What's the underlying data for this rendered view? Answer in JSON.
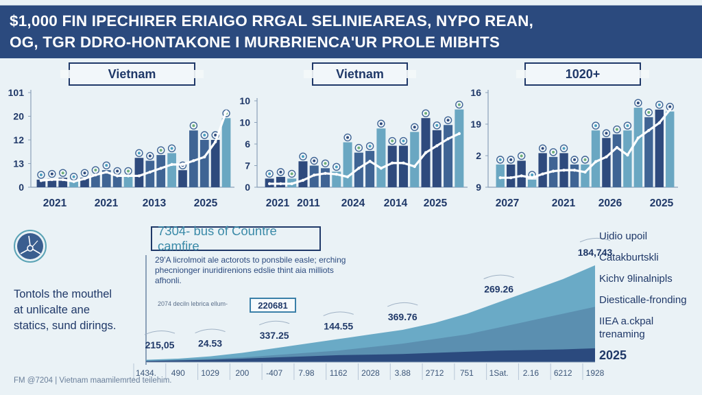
{
  "header": {
    "title_line1": "$1,000 FIN IPECHIRER ERIAIGO RRGAL SELINIEAREAS, NYPO REAN,",
    "title_line2": "OG, TGR DDRO-HONTAKONE I MURBRIENCA'UR PROLE MIBHTS"
  },
  "colors": {
    "header_bg": "#2b4a7e",
    "navy": "#1f3868",
    "bar_dark": "#2e4a7d",
    "bar_mid": "#3f6494",
    "bar_light": "#6aa7c2",
    "line": "#ffffff",
    "area_light": "#6aaac6",
    "area_mid": "#5b8fb0",
    "area_dark": "#2b4a7e",
    "background": "#eaf2f6"
  },
  "chart_data": [
    {
      "type": "bar",
      "title": "Vietnam",
      "yticks": [
        "101",
        "20",
        "12",
        "13",
        "0"
      ],
      "xticks": [
        "2021",
        "2021",
        "2013",
        "2025"
      ],
      "ylim": [
        0,
        100
      ],
      "grid": false,
      "series": [
        {
          "name": "bars",
          "values": [
            8,
            9,
            10,
            6,
            10,
            13,
            18,
            12,
            12,
            31,
            28,
            34,
            36,
            18,
            60,
            50,
            50,
            73
          ]
        },
        {
          "name": "trend-line",
          "type": "line",
          "values": [
            7,
            8,
            8,
            6,
            9,
            13,
            16,
            12,
            12,
            12,
            16,
            20,
            24,
            24,
            28,
            32,
            48,
            80
          ]
        }
      ],
      "bar_shades": [
        "dark",
        "dark",
        "dark",
        "light",
        "dark",
        "mid",
        "mid",
        "mid",
        "light",
        "dark",
        "mid",
        "mid",
        "light",
        "dark",
        "mid",
        "mid",
        "dark",
        "light"
      ]
    },
    {
      "type": "bar",
      "title": "Vietnam",
      "yticks": [
        "10",
        "10",
        "6",
        "7",
        "0"
      ],
      "xticks": [
        "2021",
        "2011",
        "2024",
        "2014",
        "2025"
      ],
      "ylim": [
        0,
        100
      ],
      "grid": false,
      "series": [
        {
          "name": "bars",
          "values": [
            10,
            12,
            10,
            30,
            25,
            22,
            18,
            52,
            40,
            42,
            68,
            48,
            48,
            64,
            80,
            66,
            72,
            90
          ]
        },
        {
          "name": "trend-line",
          "type": "line",
          "values": [
            4,
            4,
            4,
            8,
            14,
            16,
            15,
            12,
            22,
            30,
            22,
            28,
            28,
            24,
            40,
            48,
            56,
            62
          ]
        }
      ],
      "bar_shades": [
        "dark",
        "dark",
        "light",
        "dark",
        "mid",
        "mid",
        "light",
        "light",
        "mid",
        "mid",
        "light",
        "dark",
        "dark",
        "light",
        "dark",
        "dark",
        "mid",
        "light"
      ]
    },
    {
      "type": "bar",
      "title": "1020+",
      "yticks": [
        "16",
        "19",
        "2",
        "9"
      ],
      "xticks": [
        "2027",
        "2021",
        "2026",
        "2025"
      ],
      "ylim": [
        0,
        100
      ],
      "grid": false,
      "series": [
        {
          "name": "bars",
          "values": [
            24,
            24,
            28,
            8,
            36,
            32,
            36,
            24,
            24,
            60,
            52,
            56,
            60,
            84,
            74,
            82,
            80
          ]
        },
        {
          "name": "trend-line",
          "type": "line",
          "values": [
            10,
            10,
            12,
            10,
            14,
            17,
            18,
            18,
            16,
            27,
            32,
            42,
            34,
            52,
            60,
            68,
            82
          ]
        }
      ],
      "bar_shades": [
        "light",
        "dark",
        "dark",
        "light",
        "dark",
        "mid",
        "dark",
        "mid",
        "light",
        "light",
        "dark",
        "mid",
        "light",
        "light",
        "mid",
        "dark",
        "light"
      ]
    },
    {
      "type": "area",
      "title": "7304- bus of Countre camfire",
      "xticks": [
        "1434.",
        "490",
        "1029",
        "200",
        "-407",
        "7.98",
        "1162",
        "2028",
        "3.88",
        "2712",
        "751",
        "1Sat.",
        "2.16",
        "6212",
        "1928"
      ],
      "ylim": [
        0,
        100
      ],
      "series": [
        {
          "name": "Uidio upoil",
          "values": [
            2,
            3,
            5,
            8,
            12,
            16,
            20,
            24,
            28,
            34,
            42,
            52,
            62,
            72,
            84
          ]
        },
        {
          "name": "Diesticalle-fronding",
          "values": [
            1,
            2,
            3,
            4,
            6,
            8,
            10,
            13,
            16,
            20,
            24,
            30,
            36,
            42,
            48
          ]
        },
        {
          "name": "2025",
          "values": [
            1,
            1.5,
            2,
            3,
            4,
            5,
            6,
            6.5,
            7,
            8,
            9,
            10,
            10.5,
            11,
            12
          ]
        }
      ],
      "annotations": [
        {
          "label": "215,05",
          "x_index": 0
        },
        {
          "label": "24.53",
          "x_index": 2
        },
        {
          "label": "337.25",
          "x_index": 4
        },
        {
          "label": "144.55",
          "x_index": 6
        },
        {
          "label": "369.76",
          "x_index": 8
        },
        {
          "label": "269.26",
          "x_index": 11
        },
        {
          "label": "184,743",
          "x_index": 14
        }
      ]
    }
  ],
  "bottom": {
    "side_text_lines": [
      "Tontols the mouthel",
      "at unlicalte ane",
      "statics, sund dirings."
    ],
    "subtitle": "7304- bus of Countre camfire",
    "paragraph": "29'A licrolmoit ale actorots to ponsbile easle; erching phecnionger inuridirenions edslie thint aia milliots afhonli.",
    "note": "2074 deciln lebrica ellum-",
    "callout": "220681",
    "legend": [
      "Uidio upoil",
      "Catakburtskli",
      "Kichv 9linalnipls",
      "Diesticalle-fronding",
      "IIEA a.ckpal trenaming",
      "2025"
    ],
    "footer": "FM @7204 | Vietnam maamilemrted teilehim."
  }
}
